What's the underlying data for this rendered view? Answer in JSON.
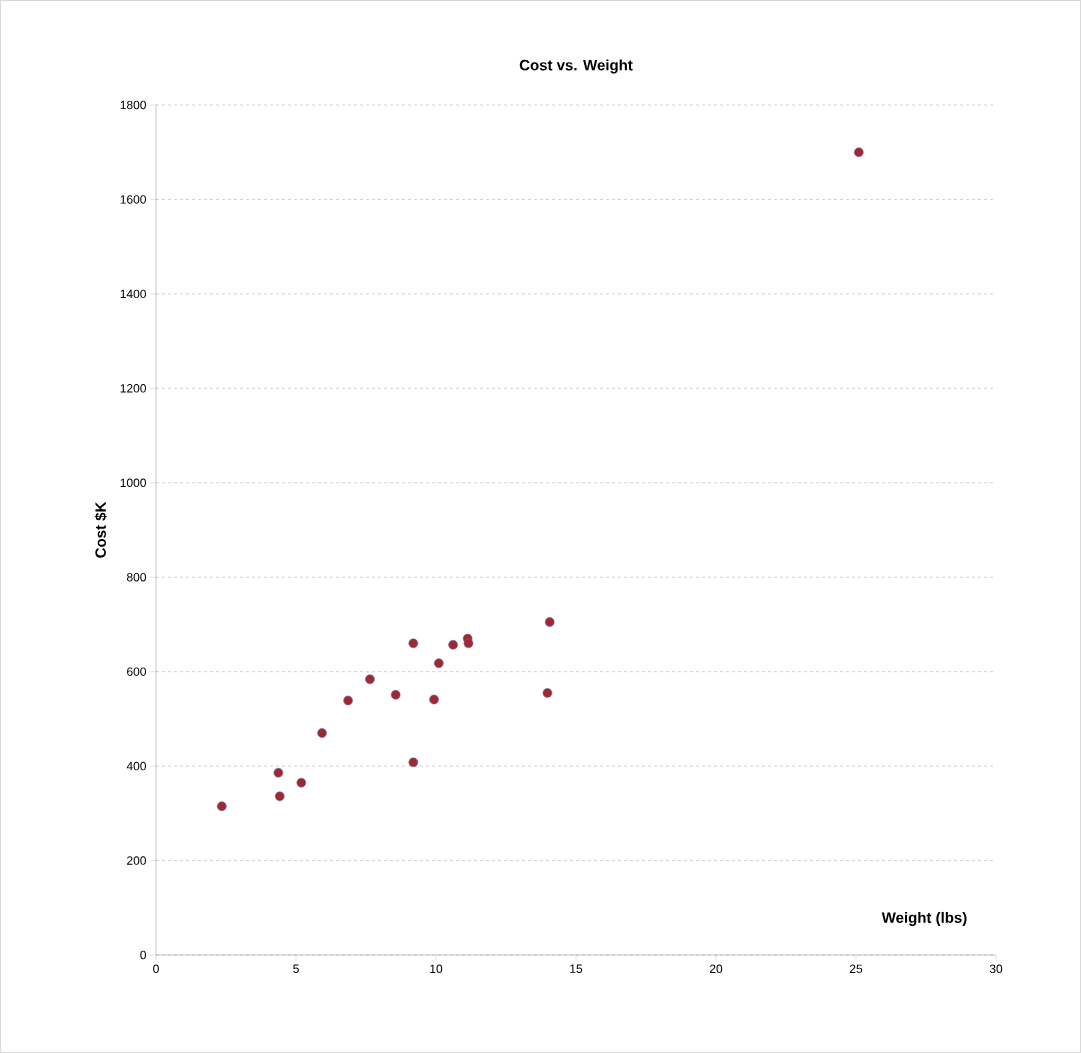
{
  "chart_data": {
    "type": "scatter",
    "title": "Cost vs. Weight",
    "xlabel": "Weight (lbs)",
    "ylabel": "Cost $K",
    "x": [
      2.35,
      4.37,
      4.42,
      5.19,
      5.93,
      6.86,
      7.64,
      8.56,
      9.19,
      9.19,
      9.93,
      10.1,
      10.61,
      11.13,
      11.16,
      14.06,
      13.98,
      25.1
    ],
    "values": [
      315,
      386,
      336,
      365,
      470,
      539,
      584,
      551,
      660,
      408,
      541,
      618,
      657,
      670,
      660,
      705,
      555,
      1700
    ],
    "color": "#9e2a2f",
    "marker": "circle",
    "xlim": [
      0,
      30
    ],
    "xticks": [
      0,
      5,
      10,
      15,
      20,
      25,
      30
    ],
    "ylim": [
      0,
      1800
    ],
    "yticks": [
      0,
      200,
      400,
      600,
      800,
      1000,
      1200,
      1400,
      1600,
      1800
    ],
    "grid": "y"
  }
}
